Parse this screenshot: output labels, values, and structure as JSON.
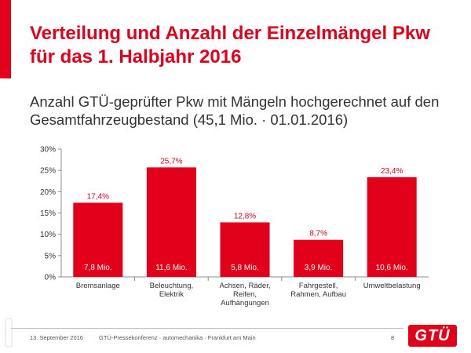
{
  "slide": {
    "title_line1": "Verteilung und Anzahl der Einzelmängel Pkw",
    "title_line2": "für das 1. Halbjahr 2016",
    "subtitle_line1": "Anzahl GTÜ-geprüfter Pkw mit Mängeln hochgerechnet auf den",
    "subtitle_line2": "Gesamtfahrzeugbestand (45,1 Mio. · 01.01.2016)"
  },
  "colors": {
    "accent": "#e2001a",
    "bar": "#e2001a",
    "text": "#333333"
  },
  "chart_data": {
    "type": "bar",
    "title": "Anzahl GTÜ-geprüfter Pkw mit Mängeln hochgerechnet auf den Gesamtfahrzeugbestand (45,1 Mio. · 01.01.2016)",
    "xlabel": "",
    "ylabel": "",
    "ylim": [
      0,
      30
    ],
    "y_ticks": [
      0,
      5,
      10,
      15,
      20,
      25,
      30
    ],
    "y_tick_labels": [
      "0%",
      "5%",
      "10%",
      "15%",
      "20%",
      "25%",
      "30%"
    ],
    "grid": false,
    "categories": [
      [
        "Bremsanlage"
      ],
      [
        "Beleuchtung,",
        "Elektrik"
      ],
      [
        "Achsen, Räder,",
        "Reifen,",
        "Aufhängungen"
      ],
      [
        "Fahrgestell,",
        "Rahmen, Aufbau"
      ],
      [
        "Umweltbelastung"
      ]
    ],
    "values": [
      17.4,
      25.7,
      12.8,
      8.7,
      23.4
    ],
    "value_labels": [
      "17,4%",
      "25,7%",
      "12,8%",
      "8,7%",
      "23,4%"
    ],
    "count_labels": [
      "7,8 Mio.",
      "11,6 Mio.",
      "5,8 Mio.",
      "3,9 Mio.",
      "10,6 Mio."
    ]
  },
  "footer": {
    "date": "13. September 2016",
    "event": "GTÜ-Pressekonferenz · automechanika · Frankfurt am Main",
    "page": "8",
    "logo_text": "GTÜ"
  }
}
